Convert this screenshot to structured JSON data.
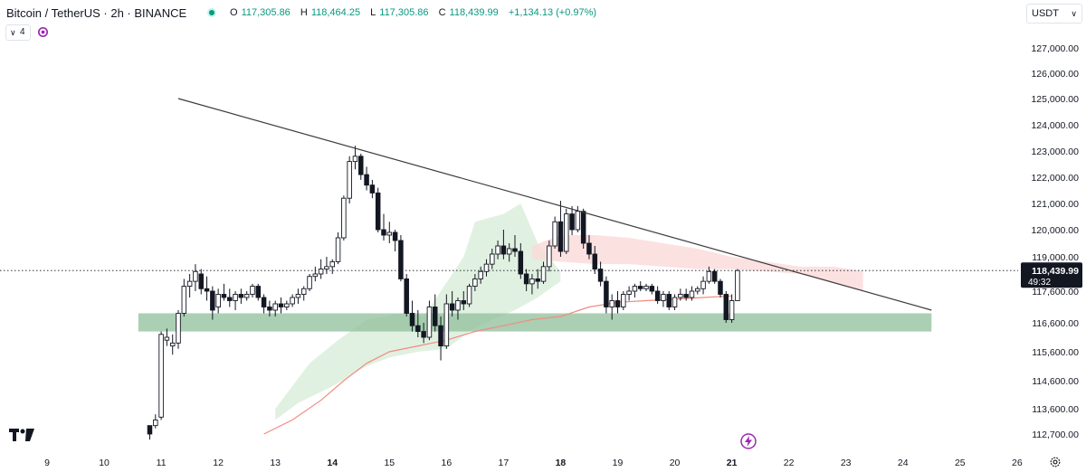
{
  "header": {
    "symbol": "Bitcoin / TetherUS · 2h · BINANCE",
    "ohlc": [
      {
        "key": "O",
        "value": "117,305.86"
      },
      {
        "key": "H",
        "value": "118,464.25"
      },
      {
        "key": "L",
        "value": "117,305.86"
      },
      {
        "key": "C",
        "value": "118,439.99"
      },
      {
        "key": "",
        "value": "+1,134.13 (+0.97%)"
      }
    ],
    "indicator_count": "4",
    "currency": "USDT"
  },
  "colors": {
    "up": "#089981",
    "down": "#131722",
    "zone": "#8fbf99",
    "cloud_green": "#dcefdc",
    "cloud_red": "#fbdada",
    "ma": "#f28b82",
    "trendline": "#3b3b3b",
    "status_dot": "#089981",
    "lightning": "#9c27b0"
  },
  "icons": [
    "status-dot-icon",
    "chevron-down-icon",
    "sync-icon",
    "tradingview-logo-icon",
    "lightning-icon",
    "settings-icon"
  ],
  "chart_data": {
    "type": "candlestick",
    "price_axis": {
      "ticks": [
        127000,
        126000,
        125000,
        124000,
        123000,
        122000,
        121000,
        120000,
        119000,
        117600,
        116600,
        115600,
        114600,
        113600,
        112700
      ],
      "tick_labels": [
        "127,000.00",
        "126,000.00",
        "125,000.00",
        "124,000.00",
        "123,000.00",
        "122,000.00",
        "121,000.00",
        "120,000.00",
        "119,000.00",
        "117,600.00",
        "116,600.00",
        "115,600.00",
        "114,600.00",
        "113,600.00",
        "112,700.00"
      ],
      "current_price": 118439.99,
      "current_price_label": "118,439.99",
      "countdown_label": "49:32"
    },
    "time_axis": {
      "ticks": [
        9,
        10,
        11,
        12,
        13,
        14,
        15,
        16,
        17,
        18,
        19,
        20,
        21,
        22,
        23,
        24,
        25,
        26
      ],
      "tick_labels": [
        "9",
        "10",
        "11",
        "12",
        "13",
        "14",
        "15",
        "16",
        "17",
        "18",
        "19",
        "20",
        "21",
        "22",
        "23",
        "24",
        "25",
        "26"
      ],
      "bold": [
        "14",
        "18",
        "21"
      ]
    },
    "candles": [
      {
        "d": 10.8,
        "o": 113000,
        "h": 113000,
        "l": 112500,
        "c": 112700
      },
      {
        "d": 10.9,
        "o": 113000,
        "h": 113400,
        "l": 112900,
        "c": 113200
      },
      {
        "d": 11.0,
        "o": 113300,
        "h": 116300,
        "l": 113200,
        "c": 116200
      },
      {
        "d": 11.1,
        "o": 116000,
        "h": 116400,
        "l": 115800,
        "c": 116100
      },
      {
        "d": 11.2,
        "o": 115800,
        "h": 116200,
        "l": 115500,
        "c": 115900
      },
      {
        "d": 11.3,
        "o": 115900,
        "h": 117000,
        "l": 115700,
        "c": 116900
      },
      {
        "d": 11.4,
        "o": 116900,
        "h": 118100,
        "l": 116800,
        "c": 117800
      },
      {
        "d": 11.5,
        "o": 117800,
        "h": 118300,
        "l": 117400,
        "c": 118000
      },
      {
        "d": 11.6,
        "o": 118000,
        "h": 118700,
        "l": 117600,
        "c": 118400
      },
      {
        "d": 11.7,
        "o": 118300,
        "h": 118500,
        "l": 117500,
        "c": 117700
      },
      {
        "d": 11.8,
        "o": 117700,
        "h": 118200,
        "l": 117300,
        "c": 117600
      },
      {
        "d": 11.9,
        "o": 117600,
        "h": 117800,
        "l": 116700,
        "c": 117000
      },
      {
        "d": 12.0,
        "o": 117100,
        "h": 117700,
        "l": 116900,
        "c": 117500
      },
      {
        "d": 12.1,
        "o": 117500,
        "h": 117900,
        "l": 117300,
        "c": 117400
      },
      {
        "d": 12.2,
        "o": 117400,
        "h": 117700,
        "l": 117100,
        "c": 117300
      },
      {
        "d": 12.3,
        "o": 117300,
        "h": 117600,
        "l": 117000,
        "c": 117500
      },
      {
        "d": 12.4,
        "o": 117500,
        "h": 117700,
        "l": 117200,
        "c": 117400
      },
      {
        "d": 12.5,
        "o": 117400,
        "h": 117600,
        "l": 117300,
        "c": 117500
      },
      {
        "d": 12.6,
        "o": 117500,
        "h": 117900,
        "l": 117400,
        "c": 117800
      },
      {
        "d": 12.7,
        "o": 117800,
        "h": 117900,
        "l": 117300,
        "c": 117400
      },
      {
        "d": 12.8,
        "o": 117400,
        "h": 117500,
        "l": 116900,
        "c": 117100
      },
      {
        "d": 12.9,
        "o": 117100,
        "h": 117300,
        "l": 116800,
        "c": 117000
      },
      {
        "d": 13.0,
        "o": 117000,
        "h": 117300,
        "l": 116800,
        "c": 117200
      },
      {
        "d": 13.1,
        "o": 117200,
        "h": 117400,
        "l": 116900,
        "c": 117100
      },
      {
        "d": 13.2,
        "o": 117100,
        "h": 117300,
        "l": 117000,
        "c": 117200
      },
      {
        "d": 13.3,
        "o": 117200,
        "h": 117500,
        "l": 117100,
        "c": 117400
      },
      {
        "d": 13.4,
        "o": 117400,
        "h": 117700,
        "l": 117200,
        "c": 117500
      },
      {
        "d": 13.5,
        "o": 117500,
        "h": 117800,
        "l": 117300,
        "c": 117700
      },
      {
        "d": 13.6,
        "o": 117700,
        "h": 118300,
        "l": 117600,
        "c": 118200
      },
      {
        "d": 13.7,
        "o": 118200,
        "h": 118600,
        "l": 118000,
        "c": 118300
      },
      {
        "d": 13.8,
        "o": 118300,
        "h": 118900,
        "l": 118100,
        "c": 118500
      },
      {
        "d": 13.9,
        "o": 118500,
        "h": 119000,
        "l": 118300,
        "c": 118600
      },
      {
        "d": 14.0,
        "o": 118600,
        "h": 118900,
        "l": 118300,
        "c": 118800
      },
      {
        "d": 14.1,
        "o": 118800,
        "h": 119900,
        "l": 118700,
        "c": 119700
      },
      {
        "d": 14.2,
        "o": 119700,
        "h": 121300,
        "l": 119600,
        "c": 121200
      },
      {
        "d": 14.3,
        "o": 121200,
        "h": 122800,
        "l": 121000,
        "c": 122600
      },
      {
        "d": 14.4,
        "o": 122600,
        "h": 123200,
        "l": 122300,
        "c": 122800
      },
      {
        "d": 14.5,
        "o": 122800,
        "h": 122900,
        "l": 121900,
        "c": 122100
      },
      {
        "d": 14.6,
        "o": 122100,
        "h": 122400,
        "l": 121500,
        "c": 121700
      },
      {
        "d": 14.7,
        "o": 121700,
        "h": 121900,
        "l": 121200,
        "c": 121400
      },
      {
        "d": 14.8,
        "o": 121400,
        "h": 121600,
        "l": 119900,
        "c": 120000
      },
      {
        "d": 14.9,
        "o": 120000,
        "h": 120600,
        "l": 119600,
        "c": 119800
      },
      {
        "d": 15.0,
        "o": 119800,
        "h": 120300,
        "l": 119500,
        "c": 119900
      },
      {
        "d": 15.1,
        "o": 119900,
        "h": 120000,
        "l": 119200,
        "c": 119600
      },
      {
        "d": 15.2,
        "o": 119600,
        "h": 119800,
        "l": 118000,
        "c": 118100
      },
      {
        "d": 15.3,
        "o": 118100,
        "h": 118300,
        "l": 116800,
        "c": 116900
      },
      {
        "d": 15.4,
        "o": 116900,
        "h": 117300,
        "l": 116300,
        "c": 116500
      },
      {
        "d": 15.5,
        "o": 116500,
        "h": 117000,
        "l": 116100,
        "c": 116300
      },
      {
        "d": 15.6,
        "o": 116300,
        "h": 116600,
        "l": 115900,
        "c": 116100
      },
      {
        "d": 15.7,
        "o": 116100,
        "h": 117300,
        "l": 116000,
        "c": 117100
      },
      {
        "d": 15.8,
        "o": 117100,
        "h": 117500,
        "l": 116300,
        "c": 116500
      },
      {
        "d": 15.9,
        "o": 116500,
        "h": 116800,
        "l": 115300,
        "c": 115800
      },
      {
        "d": 16.0,
        "o": 115800,
        "h": 117500,
        "l": 115700,
        "c": 117200
      },
      {
        "d": 16.1,
        "o": 117200,
        "h": 117600,
        "l": 116800,
        "c": 117000
      },
      {
        "d": 16.2,
        "o": 117000,
        "h": 117400,
        "l": 116700,
        "c": 117300
      },
      {
        "d": 16.3,
        "o": 117300,
        "h": 117600,
        "l": 117000,
        "c": 117200
      },
      {
        "d": 16.4,
        "o": 117200,
        "h": 117900,
        "l": 117100,
        "c": 117800
      },
      {
        "d": 16.5,
        "o": 117800,
        "h": 118300,
        "l": 117600,
        "c": 118100
      },
      {
        "d": 16.6,
        "o": 118100,
        "h": 118600,
        "l": 117900,
        "c": 118400
      },
      {
        "d": 16.7,
        "o": 118400,
        "h": 118900,
        "l": 118200,
        "c": 118700
      },
      {
        "d": 16.8,
        "o": 118700,
        "h": 119300,
        "l": 118500,
        "c": 119100
      },
      {
        "d": 16.9,
        "o": 119100,
        "h": 119600,
        "l": 118900,
        "c": 119400
      },
      {
        "d": 17.0,
        "o": 119400,
        "h": 120000,
        "l": 118900,
        "c": 119100
      },
      {
        "d": 17.1,
        "o": 119100,
        "h": 119500,
        "l": 118800,
        "c": 119300
      },
      {
        "d": 17.2,
        "o": 119300,
        "h": 119800,
        "l": 119000,
        "c": 119200
      },
      {
        "d": 17.3,
        "o": 119200,
        "h": 119500,
        "l": 118100,
        "c": 118300
      },
      {
        "d": 17.4,
        "o": 118300,
        "h": 118500,
        "l": 117600,
        "c": 117900
      },
      {
        "d": 17.5,
        "o": 117900,
        "h": 118300,
        "l": 117500,
        "c": 118100
      },
      {
        "d": 17.6,
        "o": 118100,
        "h": 118500,
        "l": 117700,
        "c": 118000
      },
      {
        "d": 17.7,
        "o": 118000,
        "h": 118800,
        "l": 117900,
        "c": 118600
      },
      {
        "d": 17.8,
        "o": 118600,
        "h": 119600,
        "l": 118400,
        "c": 119400
      },
      {
        "d": 17.9,
        "o": 119400,
        "h": 120500,
        "l": 119300,
        "c": 120300
      },
      {
        "d": 18.0,
        "o": 120300,
        "h": 121100,
        "l": 119000,
        "c": 119200
      },
      {
        "d": 18.1,
        "o": 119200,
        "h": 120800,
        "l": 119100,
        "c": 120600
      },
      {
        "d": 18.2,
        "o": 120600,
        "h": 120900,
        "l": 119800,
        "c": 120000
      },
      {
        "d": 18.3,
        "o": 120000,
        "h": 120900,
        "l": 119900,
        "c": 120700
      },
      {
        "d": 18.4,
        "o": 120700,
        "h": 120800,
        "l": 119300,
        "c": 119500
      },
      {
        "d": 18.5,
        "o": 119500,
        "h": 119800,
        "l": 118900,
        "c": 119100
      },
      {
        "d": 18.6,
        "o": 119100,
        "h": 119400,
        "l": 118300,
        "c": 118500
      },
      {
        "d": 18.7,
        "o": 118500,
        "h": 118800,
        "l": 117800,
        "c": 118000
      },
      {
        "d": 18.8,
        "o": 118000,
        "h": 118200,
        "l": 116900,
        "c": 117100
      },
      {
        "d": 18.9,
        "o": 117100,
        "h": 117500,
        "l": 116700,
        "c": 117300
      },
      {
        "d": 19.0,
        "o": 117300,
        "h": 117600,
        "l": 116900,
        "c": 117100
      },
      {
        "d": 19.1,
        "o": 117100,
        "h": 117600,
        "l": 117000,
        "c": 117500
      },
      {
        "d": 19.2,
        "o": 117500,
        "h": 117800,
        "l": 117300,
        "c": 117600
      },
      {
        "d": 19.3,
        "o": 117600,
        "h": 117900,
        "l": 117400,
        "c": 117800
      },
      {
        "d": 19.4,
        "o": 117800,
        "h": 118000,
        "l": 117600,
        "c": 117700
      },
      {
        "d": 19.5,
        "o": 117700,
        "h": 117900,
        "l": 117600,
        "c": 117800
      },
      {
        "d": 19.6,
        "o": 117800,
        "h": 117900,
        "l": 117500,
        "c": 117600
      },
      {
        "d": 19.7,
        "o": 117600,
        "h": 117800,
        "l": 117200,
        "c": 117300
      },
      {
        "d": 19.8,
        "o": 117300,
        "h": 117600,
        "l": 117100,
        "c": 117500
      },
      {
        "d": 19.9,
        "o": 117500,
        "h": 117600,
        "l": 117000,
        "c": 117100
      },
      {
        "d": 20.0,
        "o": 117100,
        "h": 117500,
        "l": 117000,
        "c": 117400
      },
      {
        "d": 20.1,
        "o": 117400,
        "h": 117700,
        "l": 117300,
        "c": 117500
      },
      {
        "d": 20.2,
        "o": 117500,
        "h": 117700,
        "l": 117300,
        "c": 117400
      },
      {
        "d": 20.3,
        "o": 117400,
        "h": 117800,
        "l": 117300,
        "c": 117600
      },
      {
        "d": 20.4,
        "o": 117600,
        "h": 117800,
        "l": 117500,
        "c": 117700
      },
      {
        "d": 20.5,
        "o": 117700,
        "h": 118200,
        "l": 117500,
        "c": 118000
      },
      {
        "d": 20.6,
        "o": 118000,
        "h": 118600,
        "l": 117900,
        "c": 118400
      },
      {
        "d": 20.7,
        "o": 118400,
        "h": 118500,
        "l": 117900,
        "c": 118000
      },
      {
        "d": 20.8,
        "o": 118000,
        "h": 118100,
        "l": 117400,
        "c": 117500
      },
      {
        "d": 20.9,
        "o": 117500,
        "h": 117600,
        "l": 116600,
        "c": 116700
      },
      {
        "d": 21.0,
        "o": 116700,
        "h": 117500,
        "l": 116600,
        "c": 117300
      },
      {
        "d": 21.1,
        "o": 117300,
        "h": 118500,
        "l": 117300,
        "c": 118440
      }
    ],
    "ma_line": [
      [
        12.8,
        112700
      ],
      [
        13.3,
        113200
      ],
      [
        13.8,
        113900
      ],
      [
        14.2,
        114600
      ],
      [
        14.6,
        115200
      ],
      [
        15.0,
        115600
      ],
      [
        15.5,
        115800
      ],
      [
        16.0,
        116000
      ],
      [
        16.5,
        116300
      ],
      [
        17.0,
        116500
      ],
      [
        17.5,
        116700
      ],
      [
        18.0,
        116800
      ],
      [
        18.5,
        117100
      ],
      [
        19.0,
        117250
      ],
      [
        19.5,
        117300
      ],
      [
        20.0,
        117350
      ],
      [
        20.5,
        117400
      ],
      [
        21.0,
        117450
      ]
    ],
    "cloud_green_upper": [
      [
        13.0,
        113600
      ],
      [
        13.6,
        115200
      ],
      [
        14.1,
        116000
      ],
      [
        14.6,
        116700
      ],
      [
        15.2,
        116900
      ],
      [
        15.6,
        116800
      ],
      [
        15.9,
        117600
      ],
      [
        16.3,
        119000
      ],
      [
        16.5,
        120300
      ],
      [
        17.0,
        120600
      ],
      [
        17.3,
        121000
      ],
      [
        17.6,
        119500
      ],
      [
        18.0,
        118400
      ]
    ],
    "cloud_green_lower": [
      [
        18.0,
        118000
      ],
      [
        17.6,
        117400
      ],
      [
        17.2,
        117000
      ],
      [
        16.8,
        116700
      ],
      [
        16.4,
        116300
      ],
      [
        16.0,
        115700
      ],
      [
        15.5,
        115600
      ],
      [
        15.0,
        115400
      ],
      [
        14.6,
        115100
      ],
      [
        14.0,
        114400
      ],
      [
        13.4,
        113800
      ],
      [
        13.0,
        113200
      ]
    ],
    "cloud_red_upper": [
      [
        17.5,
        119400
      ],
      [
        18.0,
        119800
      ],
      [
        18.6,
        119800
      ],
      [
        19.2,
        119700
      ],
      [
        19.8,
        119500
      ],
      [
        20.4,
        119300
      ],
      [
        21.0,
        119000
      ],
      [
        21.6,
        118800
      ],
      [
        22.2,
        118600
      ],
      [
        22.8,
        118600
      ],
      [
        23.3,
        118400
      ]
    ],
    "cloud_red_lower": [
      [
        23.3,
        117600
      ],
      [
        22.8,
        117900
      ],
      [
        22.2,
        118300
      ],
      [
        21.6,
        118400
      ],
      [
        21.0,
        118500
      ],
      [
        20.4,
        118500
      ],
      [
        19.8,
        118600
      ],
      [
        19.2,
        118700
      ],
      [
        18.6,
        118700
      ],
      [
        18.0,
        118800
      ],
      [
        17.5,
        118900
      ]
    ],
    "support_zone": {
      "from_date": 10.6,
      "to_date": 24.5,
      "top": 116900,
      "bottom": 116300
    },
    "trendline": {
      "start": [
        11.3,
        125000
      ],
      "end": [
        24.5,
        117000
      ]
    },
    "current_price_line": 118439.99
  }
}
